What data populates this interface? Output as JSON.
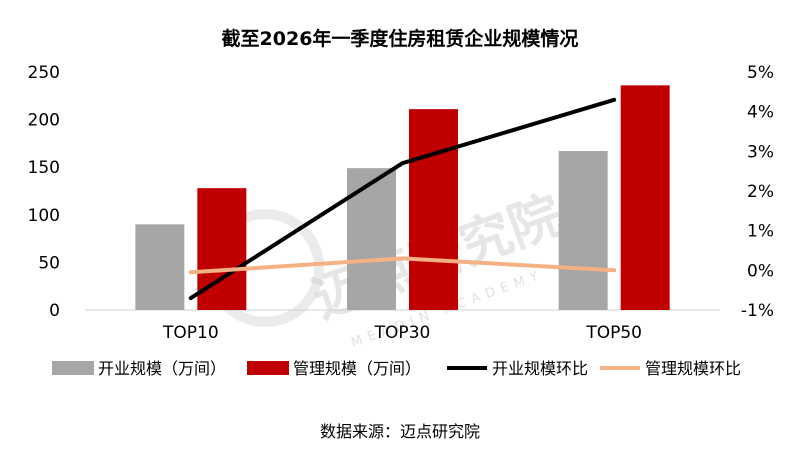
{
  "chart_data": {
    "type": "bar",
    "title": "截至2026年一季度住房租赁企业规模情况",
    "categories": [
      "TOP10",
      "TOP30",
      "TOP50"
    ],
    "series": [
      {
        "name": "开业规模（万间）",
        "kind": "bar",
        "axis": "left",
        "color": "#a6a6a6",
        "values": [
          90,
          149,
          167
        ]
      },
      {
        "name": "管理规模（万间）",
        "kind": "bar",
        "axis": "left",
        "color": "#c00000",
        "values": [
          128,
          211,
          236
        ]
      },
      {
        "name": "开业规模环比",
        "kind": "line",
        "axis": "right",
        "color": "#000000",
        "values": [
          -0.7,
          2.7,
          4.3
        ]
      },
      {
        "name": "管理规模环比",
        "kind": "line",
        "axis": "right",
        "color": "#f4b183",
        "values": [
          -0.05,
          0.3,
          0.0
        ]
      }
    ],
    "y_left": {
      "min": 0,
      "max": 250,
      "step": 50,
      "ticks": [
        "0",
        "50",
        "100",
        "150",
        "200",
        "250"
      ]
    },
    "y_right": {
      "min": -1,
      "max": 5,
      "step": 1,
      "ticks": [
        "-1%",
        "0%",
        "1%",
        "2%",
        "3%",
        "4%",
        "5%"
      ]
    },
    "legend_position": "bottom",
    "grid": false
  },
  "source_text": "数据来源：迈点研究院",
  "watermark": {
    "main": "迈点研究院",
    "sub": "MEADIN ACADEMY"
  }
}
